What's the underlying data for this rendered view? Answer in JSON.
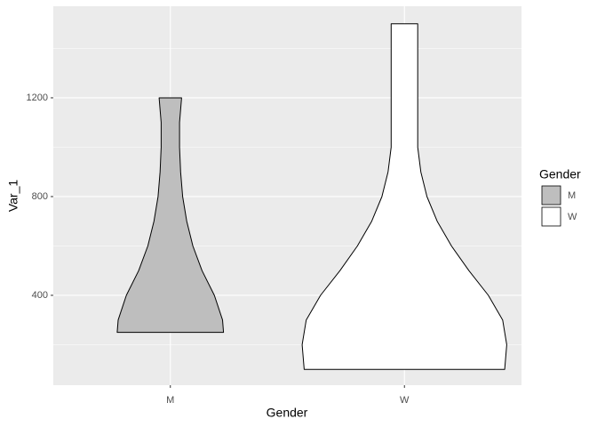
{
  "chart_data": {
    "type": "violin",
    "x_label": "Gender",
    "y_label": "Var_1",
    "categories": [
      "M",
      "W"
    ],
    "series": [
      {
        "name": "M",
        "color": "#bebebe",
        "levels": [
          250,
          300,
          400,
          500,
          600,
          700,
          800,
          900,
          1000,
          1100,
          1200
        ],
        "density": [
          0.52,
          0.51,
          0.43,
          0.31,
          0.22,
          0.16,
          0.12,
          0.1,
          0.09,
          0.09,
          0.11
        ]
      },
      {
        "name": "W",
        "color": "#ffffff",
        "levels": [
          100,
          200,
          300,
          400,
          500,
          600,
          700,
          800,
          900,
          1000,
          1100,
          1200,
          1300,
          1400,
          1500
        ],
        "density": [
          0.98,
          1.0,
          0.96,
          0.82,
          0.63,
          0.46,
          0.32,
          0.22,
          0.16,
          0.13,
          0.13,
          0.13,
          0.13,
          0.13,
          0.13
        ]
      }
    ],
    "legend_title": "Gender",
    "legend": "right",
    "ylim": [
      36,
      1571
    ],
    "yticks": [
      400,
      800,
      1200
    ],
    "grid": true
  }
}
